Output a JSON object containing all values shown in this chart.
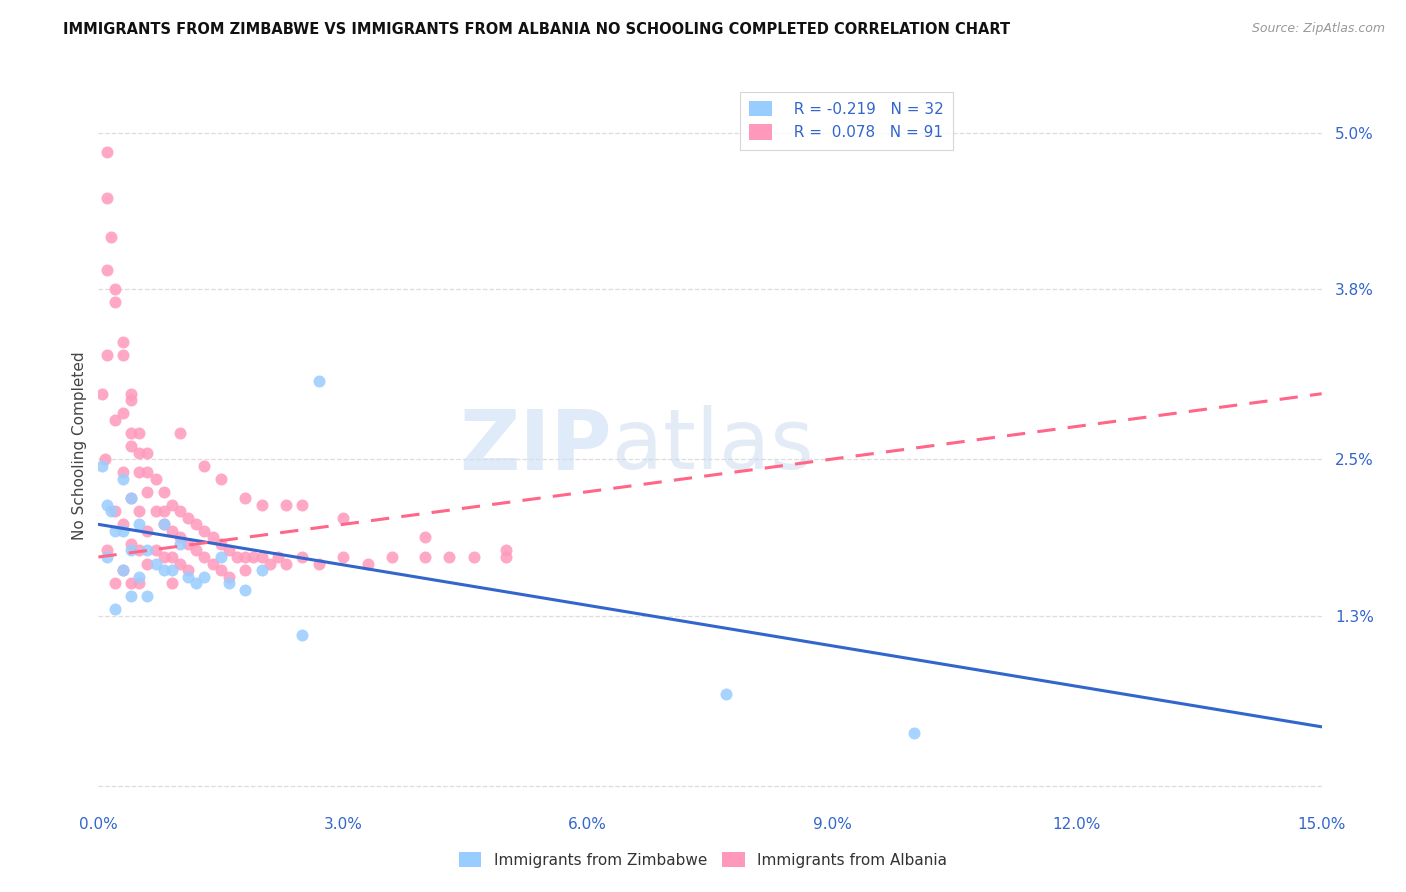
{
  "title": "IMMIGRANTS FROM ZIMBABWE VS IMMIGRANTS FROM ALBANIA NO SCHOOLING COMPLETED CORRELATION CHART",
  "source": "Source: ZipAtlas.com",
  "ylabel": "No Schooling Completed",
  "xmin": 0.0,
  "xmax": 0.15,
  "ymin": -0.002,
  "ymax": 0.054,
  "color_zimbabwe": "#99CCFF",
  "color_albania": "#FF99BB",
  "color_line_zimbabwe": "#3366CC",
  "color_line_albania": "#FF6688",
  "watermark_zip": "ZIP",
  "watermark_atlas": "atlas",
  "background_color": "#FFFFFF",
  "grid_color": "#DDDDDD",
  "ytick_vals": [
    0.0,
    0.013,
    0.025,
    0.038,
    0.05
  ],
  "ytick_labels": [
    "",
    "1.3%",
    "2.5%",
    "3.8%",
    "5.0%"
  ],
  "xtick_vals": [
    0.0,
    0.03,
    0.06,
    0.09,
    0.12,
    0.15
  ],
  "xtick_labels": [
    "0.0%",
    "3.0%",
    "6.0%",
    "9.0%",
    "12.0%",
    "15.0%"
  ],
  "legend_r1": "R = -0.219",
  "legend_n1": "N = 32",
  "legend_r2": "R =  0.078",
  "legend_n2": "N = 91",
  "zim_x": [
    0.0005,
    0.001,
    0.001,
    0.0015,
    0.002,
    0.002,
    0.003,
    0.003,
    0.003,
    0.004,
    0.004,
    0.004,
    0.005,
    0.005,
    0.006,
    0.006,
    0.007,
    0.008,
    0.008,
    0.009,
    0.01,
    0.011,
    0.012,
    0.013,
    0.015,
    0.016,
    0.018,
    0.02,
    0.025,
    0.027,
    0.077,
    0.1
  ],
  "zim_y": [
    0.0245,
    0.0215,
    0.0175,
    0.021,
    0.0195,
    0.0135,
    0.0235,
    0.0195,
    0.0165,
    0.022,
    0.018,
    0.0145,
    0.02,
    0.016,
    0.018,
    0.0145,
    0.017,
    0.02,
    0.0165,
    0.0165,
    0.0185,
    0.016,
    0.0155,
    0.016,
    0.0175,
    0.0155,
    0.015,
    0.0165,
    0.0115,
    0.031,
    0.007,
    0.004
  ],
  "alb_x": [
    0.0005,
    0.0008,
    0.001,
    0.001,
    0.001,
    0.0015,
    0.002,
    0.002,
    0.002,
    0.002,
    0.003,
    0.003,
    0.003,
    0.003,
    0.003,
    0.004,
    0.004,
    0.004,
    0.004,
    0.004,
    0.005,
    0.005,
    0.005,
    0.005,
    0.005,
    0.006,
    0.006,
    0.006,
    0.006,
    0.007,
    0.007,
    0.007,
    0.008,
    0.008,
    0.008,
    0.009,
    0.009,
    0.009,
    0.009,
    0.01,
    0.01,
    0.01,
    0.011,
    0.011,
    0.011,
    0.012,
    0.012,
    0.013,
    0.013,
    0.014,
    0.014,
    0.015,
    0.015,
    0.016,
    0.016,
    0.017,
    0.018,
    0.018,
    0.019,
    0.02,
    0.021,
    0.022,
    0.023,
    0.025,
    0.027,
    0.03,
    0.033,
    0.036,
    0.04,
    0.043,
    0.046,
    0.05,
    0.001,
    0.001,
    0.002,
    0.003,
    0.004,
    0.004,
    0.005,
    0.006,
    0.008,
    0.01,
    0.013,
    0.015,
    0.018,
    0.02,
    0.023,
    0.025,
    0.03,
    0.04,
    0.05
  ],
  "alb_y": [
    0.03,
    0.025,
    0.045,
    0.033,
    0.018,
    0.042,
    0.038,
    0.028,
    0.021,
    0.0155,
    0.034,
    0.0285,
    0.024,
    0.02,
    0.0165,
    0.03,
    0.026,
    0.022,
    0.0185,
    0.0155,
    0.027,
    0.024,
    0.021,
    0.018,
    0.0155,
    0.0255,
    0.0225,
    0.0195,
    0.017,
    0.0235,
    0.021,
    0.018,
    0.0225,
    0.02,
    0.0175,
    0.0215,
    0.0195,
    0.0175,
    0.0155,
    0.021,
    0.019,
    0.017,
    0.0205,
    0.0185,
    0.0165,
    0.02,
    0.018,
    0.0195,
    0.0175,
    0.019,
    0.017,
    0.0185,
    0.0165,
    0.018,
    0.016,
    0.0175,
    0.0175,
    0.0165,
    0.0175,
    0.0175,
    0.017,
    0.0175,
    0.017,
    0.0175,
    0.017,
    0.0175,
    0.017,
    0.0175,
    0.0175,
    0.0175,
    0.0175,
    0.018,
    0.0485,
    0.0395,
    0.037,
    0.033,
    0.0295,
    0.027,
    0.0255,
    0.024,
    0.021,
    0.027,
    0.0245,
    0.0235,
    0.022,
    0.0215,
    0.0215,
    0.0215,
    0.0205,
    0.019,
    0.0175
  ]
}
